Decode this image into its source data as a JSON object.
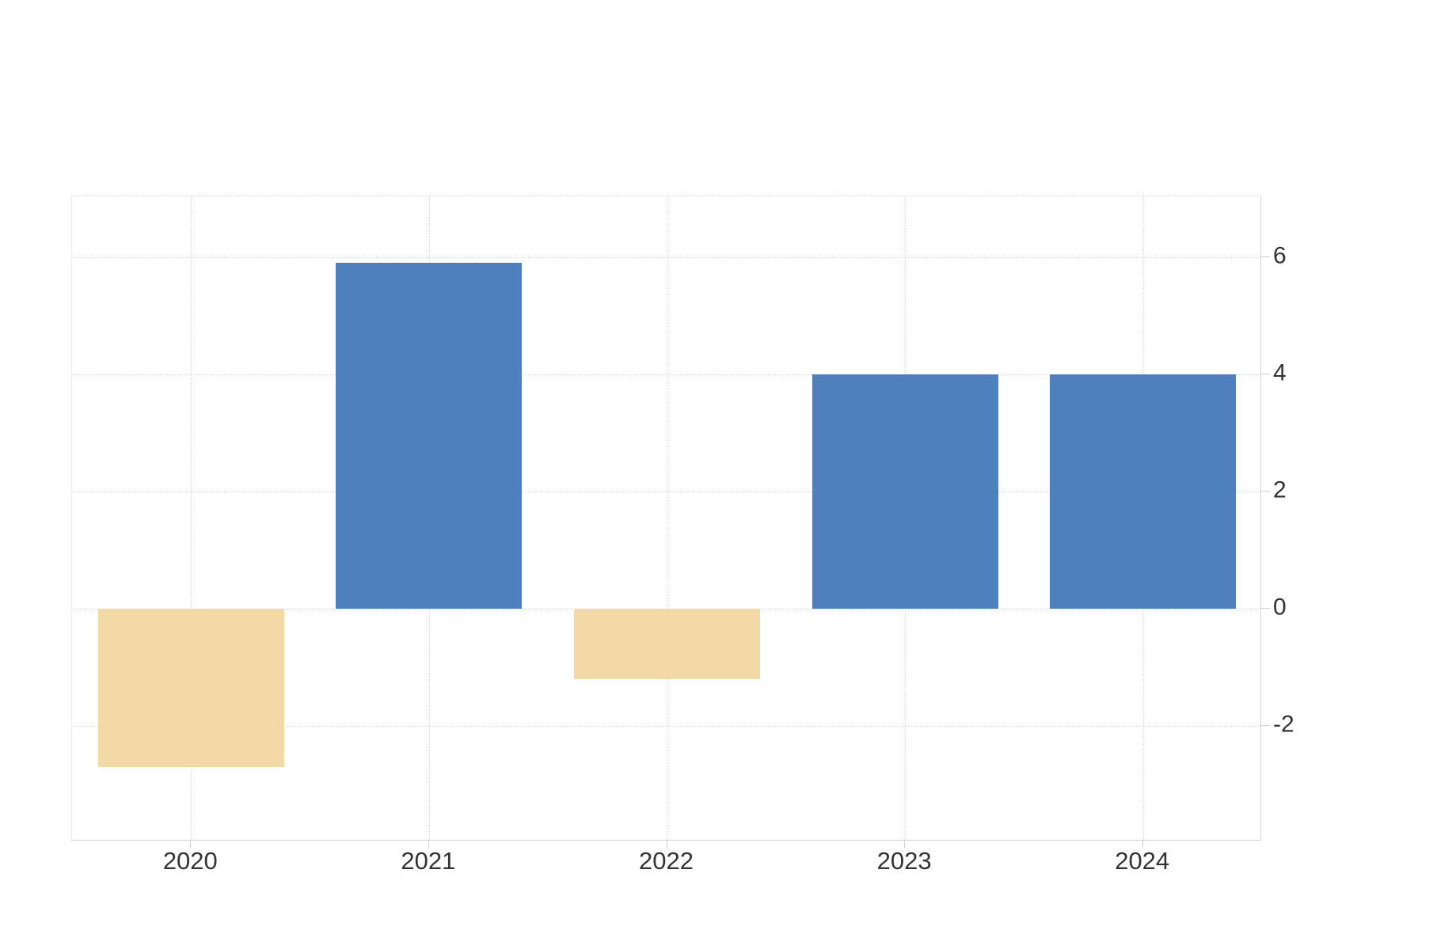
{
  "chart_data": {
    "type": "bar",
    "title": "",
    "xlabel": "",
    "ylabel": "",
    "categories": [
      "2020",
      "2021",
      "2022",
      "2023",
      "2024"
    ],
    "values": [
      -2.7,
      5.9,
      -1.2,
      4.0,
      4.0
    ],
    "y_ticks": [
      6,
      4,
      2,
      0,
      -2
    ],
    "y_tick_labels": [
      "6",
      "4",
      "2",
      "0",
      "-2"
    ],
    "ylim": [
      -3.97,
      7.04
    ],
    "axis_side": "right",
    "grid": "dotted",
    "legend": "none",
    "colors": {
      "positive_bar": "#4d80bc",
      "negative_bar": "#f2d9a6",
      "gridline": "#d9d9d9",
      "axis_line": "#d4d4d4",
      "tick": "#cfcfcf",
      "label": "#333333",
      "background": "#ffffff"
    }
  }
}
